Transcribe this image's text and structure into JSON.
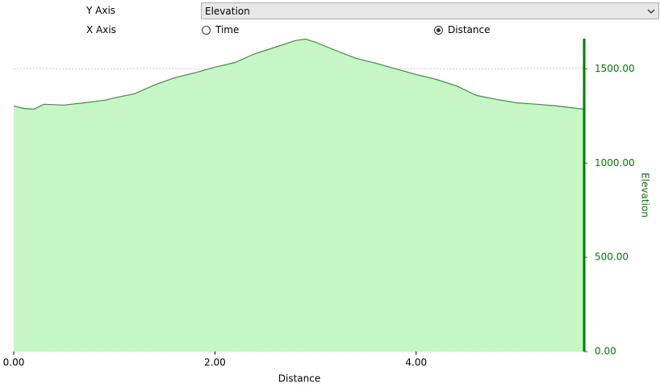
{
  "controls": {
    "y_axis_label": "Y Axis",
    "y_axis_value": "Elevation",
    "x_axis_label": "X Axis",
    "x_options": [
      {
        "label": "Time",
        "selected": false
      },
      {
        "label": "Distance",
        "selected": true
      }
    ]
  },
  "chart_data": {
    "type": "area",
    "x_label": "Distance",
    "y_label": "Elevation",
    "x": [
      0,
      0.1,
      0.2,
      0.3,
      0.5,
      0.7,
      0.9,
      1.0,
      1.2,
      1.4,
      1.6,
      1.8,
      2.0,
      2.2,
      2.4,
      2.6,
      2.8,
      2.9,
      3.0,
      3.2,
      3.4,
      3.6,
      3.8,
      4.0,
      4.2,
      4.4,
      4.6,
      4.8,
      5.0,
      5.2,
      5.4,
      5.6,
      5.67
    ],
    "values": [
      1303,
      1290,
      1286,
      1312,
      1308,
      1320,
      1333,
      1346,
      1368,
      1415,
      1453,
      1479,
      1509,
      1534,
      1581,
      1615,
      1650,
      1658,
      1641,
      1598,
      1556,
      1530,
      1500,
      1470,
      1444,
      1410,
      1359,
      1338,
      1320,
      1312,
      1303,
      1290,
      1286
    ],
    "line_color": "#2e9b2e",
    "fill_color": "#c6f5c6",
    "axis_color": "#008000",
    "xlim": [
      0,
      5.67
    ],
    "ylim": [
      0,
      1660
    ],
    "xticks": [
      {
        "value": 0,
        "label": "0.00"
      },
      {
        "value": 2,
        "label": "2.00"
      },
      {
        "value": 4,
        "label": "4.00"
      }
    ],
    "yticks": [
      {
        "value": 0,
        "label": "0.00"
      },
      {
        "value": 500,
        "label": "500.00"
      },
      {
        "value": 1000,
        "label": "1000.00"
      },
      {
        "value": 1500,
        "label": "1500.00"
      }
    ],
    "grid": true,
    "y_axis_side": "right"
  }
}
